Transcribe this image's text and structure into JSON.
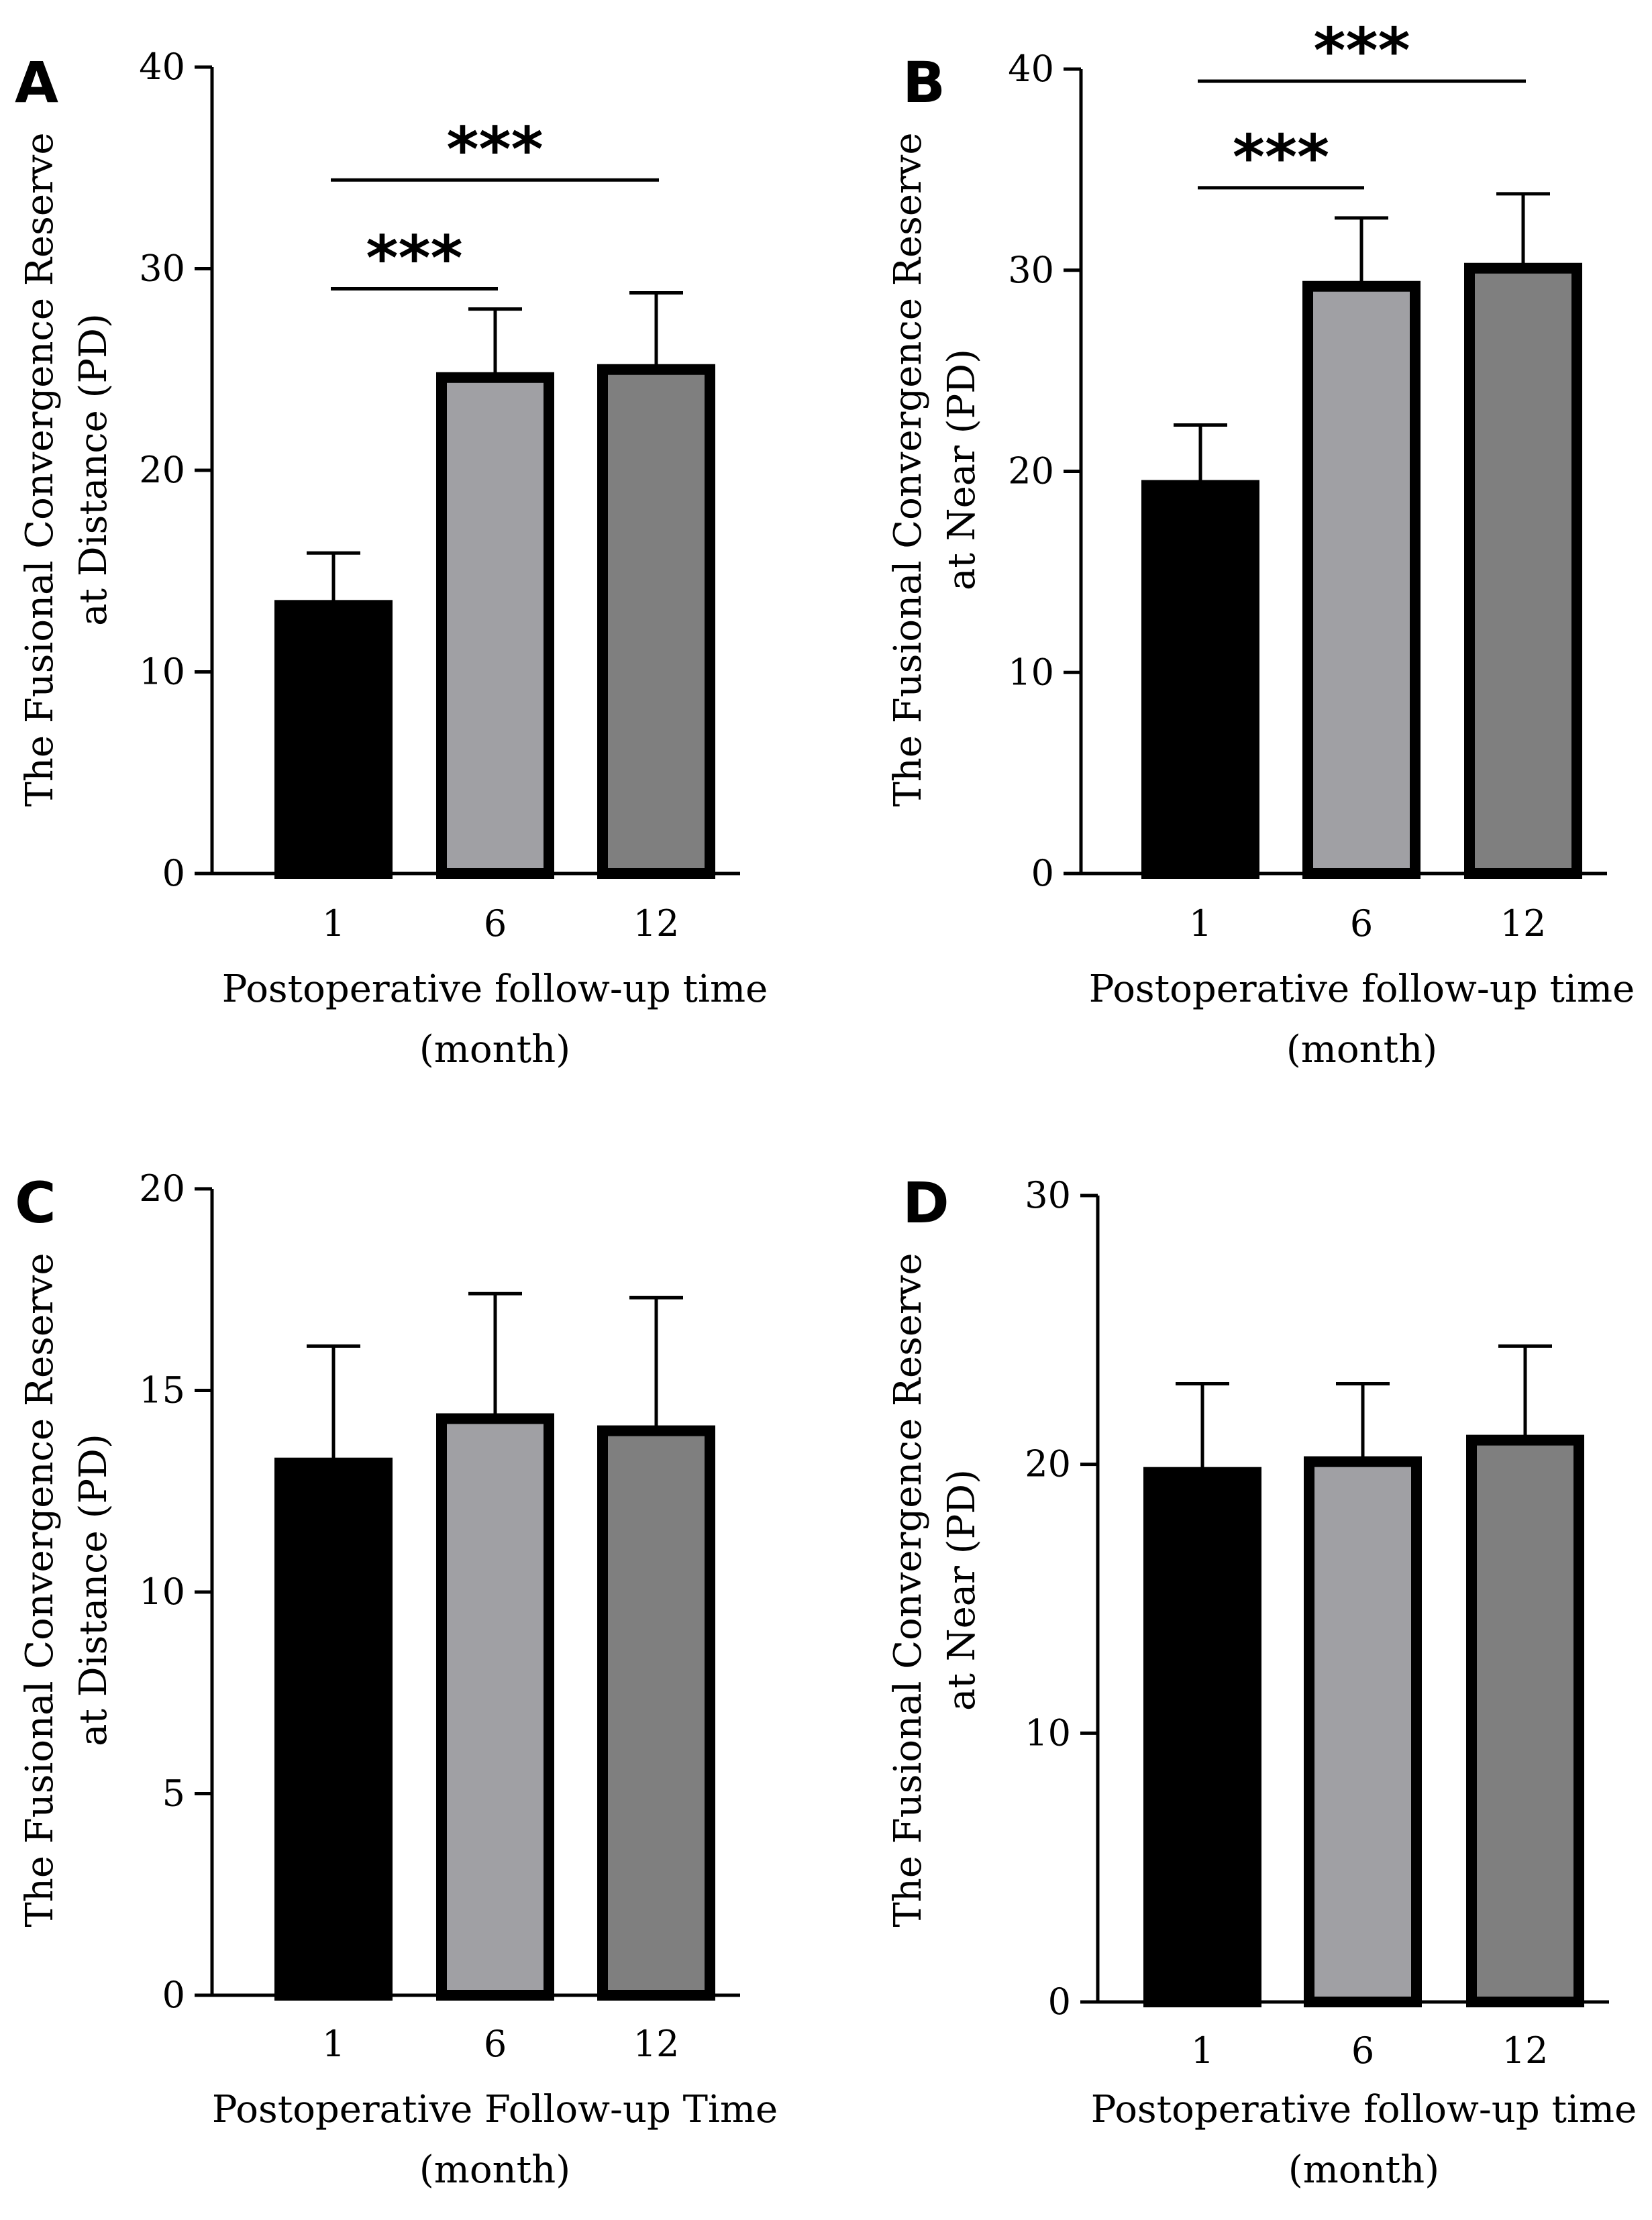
{
  "colors": {
    "bar_1": "#000000",
    "bar_6": "#a0a0a4",
    "bar_12": "#7f7f7f",
    "outline": "#000000"
  },
  "chart_data": [
    {
      "panel": "A",
      "type": "bar",
      "categories": [
        "1",
        "6",
        "12"
      ],
      "values": [
        13.3,
        24.6,
        25.0
      ],
      "error": [
        2.6,
        3.4,
        3.8
      ],
      "ylabel_lines": [
        "The Fusional Convergence Reserve",
        "at Distance (PD)"
      ],
      "xlabel_lines": [
        "Postoperative follow-up time",
        "(month)"
      ],
      "ylim": [
        0,
        40
      ],
      "yticks": [
        0,
        10,
        20,
        30,
        40
      ],
      "grid": false,
      "significance": [
        {
          "from": 0,
          "to": 1,
          "label": "***",
          "level": 29.0
        },
        {
          "from": 0,
          "to": 2,
          "label": "***",
          "level": 34.4
        }
      ]
    },
    {
      "panel": "B",
      "type": "bar",
      "categories": [
        "1",
        "6",
        "12"
      ],
      "values": [
        19.3,
        29.2,
        30.1
      ],
      "error": [
        3.0,
        3.4,
        3.7
      ],
      "ylabel_lines": [
        "The Fusional Convergence Reserve",
        "at Near (PD)"
      ],
      "xlabel_lines": [
        "Postoperative follow-up time",
        "(month)"
      ],
      "ylim": [
        0,
        40
      ],
      "yticks": [
        0,
        10,
        20,
        30,
        40
      ],
      "grid": false,
      "significance": [
        {
          "from": 0,
          "to": 1,
          "label": "***",
          "level": 34.1
        },
        {
          "from": 0,
          "to": 2,
          "label": "***",
          "level": 39.4
        }
      ]
    },
    {
      "panel": "C",
      "type": "bar",
      "categories": [
        "1",
        "6",
        "12"
      ],
      "values": [
        13.2,
        14.3,
        14.0
      ],
      "error": [
        2.9,
        3.1,
        3.3
      ],
      "ylabel_lines": [
        "The Fusional Convergence Reserve",
        "at Distance (PD)"
      ],
      "xlabel_lines": [
        "Postoperative Follow-up Time",
        "(month)"
      ],
      "ylim": [
        0,
        20
      ],
      "yticks": [
        0,
        5,
        10,
        15,
        20
      ],
      "grid": false,
      "significance": []
    },
    {
      "panel": "D",
      "type": "bar",
      "categories": [
        "1",
        "6",
        "12"
      ],
      "values": [
        19.7,
        20.1,
        20.9
      ],
      "error": [
        3.3,
        2.9,
        3.5
      ],
      "ylabel_lines": [
        "The Fusional Convergence Reserve",
        "at Near (PD)"
      ],
      "xlabel_lines": [
        "Postoperative follow-up time",
        "(month)"
      ],
      "ylim": [
        0,
        30
      ],
      "yticks": [
        0,
        10,
        20,
        30
      ],
      "grid": false,
      "significance": []
    }
  ]
}
